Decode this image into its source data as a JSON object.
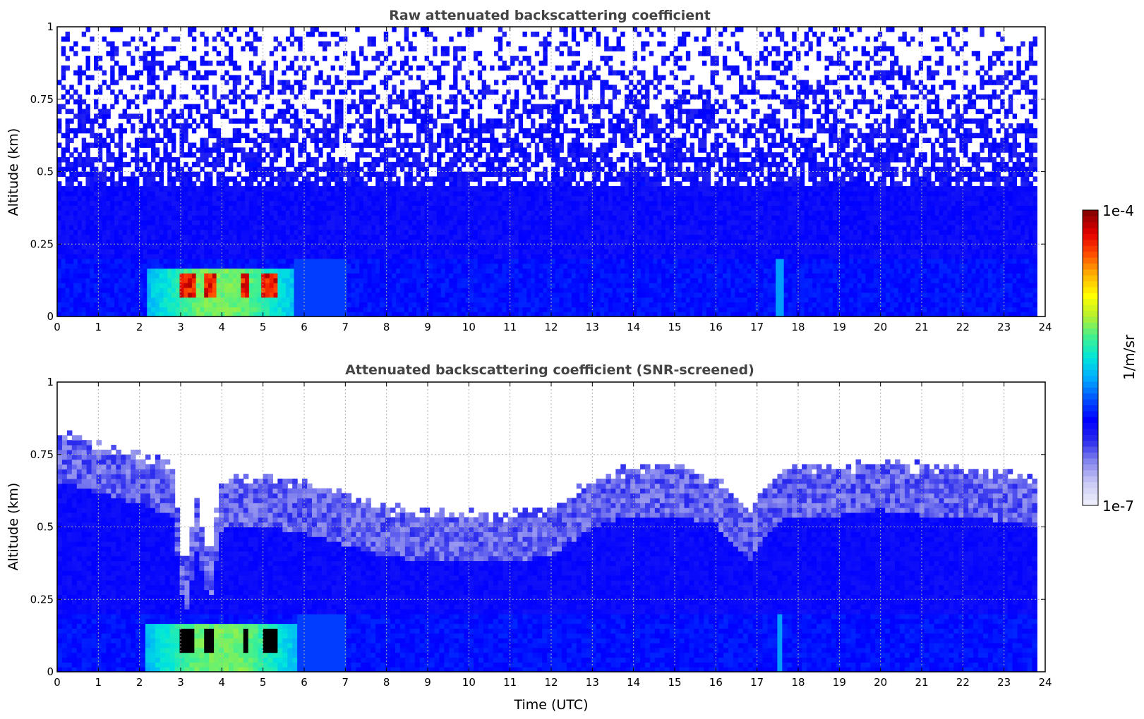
{
  "chart_data": [
    {
      "type": "heatmap",
      "title": "Raw attenuated backscattering coefficient",
      "xlabel": "",
      "ylabel": "Altitude (km)",
      "xlim": [
        0,
        24
      ],
      "ylim": [
        0,
        1
      ],
      "xticks": [
        "0",
        "1",
        "2",
        "3",
        "4",
        "5",
        "6",
        "7",
        "8",
        "9",
        "10",
        "11",
        "12",
        "13",
        "14",
        "15",
        "16",
        "17",
        "18",
        "19",
        "20",
        "21",
        "22",
        "23",
        "24"
      ],
      "yticks": [
        "0",
        "0.25",
        "0.5",
        "0.75",
        "1"
      ],
      "yticks_values": [
        0,
        0.25,
        0.5,
        0.75,
        1
      ],
      "grid": true,
      "data_extent_x": [
        0,
        23.8
      ],
      "color_scale": "log",
      "features": [
        {
          "kind": "aerosol-layer",
          "x": [
            2.2,
            5.8
          ],
          "y": [
            0.0,
            0.17
          ],
          "level": 0.55
        },
        {
          "kind": "peak-cores",
          "x": [
            3.0,
            5.4
          ],
          "y": [
            0.06,
            0.15
          ],
          "level": 0.92
        },
        {
          "kind": "noise-upper-field",
          "y": [
            0.45,
            1.0
          ]
        }
      ]
    },
    {
      "type": "heatmap",
      "title": "Attenuated backscattering coefficient (SNR-screened)",
      "xlabel": "Time (UTC)",
      "ylabel": "Altitude (km)",
      "xlim": [
        0,
        24
      ],
      "ylim": [
        0,
        1
      ],
      "xticks": [
        "0",
        "1",
        "2",
        "3",
        "4",
        "5",
        "6",
        "7",
        "8",
        "9",
        "10",
        "11",
        "12",
        "13",
        "14",
        "15",
        "16",
        "17",
        "18",
        "19",
        "20",
        "21",
        "22",
        "23",
        "24"
      ],
      "yticks": [
        "0",
        "0.25",
        "0.5",
        "0.75",
        "1"
      ],
      "yticks_values": [
        0,
        0.25,
        0.5,
        0.75,
        1
      ],
      "grid": true,
      "data_extent_x": [
        0,
        23.8
      ],
      "color_scale": "log",
      "screened_top_km": [
        [
          0,
          0.78
        ],
        [
          1,
          0.74
        ],
        [
          2,
          0.7
        ],
        [
          2.8,
          0.66
        ],
        [
          3.1,
          0.3
        ],
        [
          3.4,
          0.55
        ],
        [
          3.7,
          0.35
        ],
        [
          4.0,
          0.62
        ],
        [
          5,
          0.62
        ],
        [
          6,
          0.6
        ],
        [
          7,
          0.56
        ],
        [
          8,
          0.52
        ],
        [
          9,
          0.5
        ],
        [
          10,
          0.5
        ],
        [
          11,
          0.5
        ],
        [
          12,
          0.52
        ],
        [
          13,
          0.62
        ],
        [
          14,
          0.66
        ],
        [
          15,
          0.66
        ],
        [
          16,
          0.63
        ],
        [
          16.8,
          0.5
        ],
        [
          17.5,
          0.64
        ],
        [
          18,
          0.66
        ],
        [
          19,
          0.66
        ],
        [
          20,
          0.68
        ],
        [
          21,
          0.66
        ],
        [
          22,
          0.66
        ],
        [
          23,
          0.64
        ],
        [
          23.8,
          0.62
        ]
      ],
      "features": [
        {
          "kind": "aerosol-layer",
          "x": [
            2.2,
            5.8
          ],
          "y": [
            0.0,
            0.17
          ],
          "level": 0.55
        },
        {
          "kind": "saturated-cores",
          "x": [
            3.0,
            5.4
          ],
          "y": [
            0.06,
            0.15
          ],
          "color": "#000000"
        }
      ]
    }
  ],
  "colorbar": {
    "label": "1/m/sr",
    "max_label": "1e-4",
    "min_label": "1e-7",
    "colormap_stops": [
      "#ececfa",
      "#c8c8f5",
      "#8484ee",
      "#2a2aee",
      "#0000ff",
      "#0050ff",
      "#00aaff",
      "#00e6dc",
      "#40f090",
      "#b4f030",
      "#ffff00",
      "#ffb400",
      "#ff5000",
      "#e60000",
      "#8c0000"
    ]
  }
}
